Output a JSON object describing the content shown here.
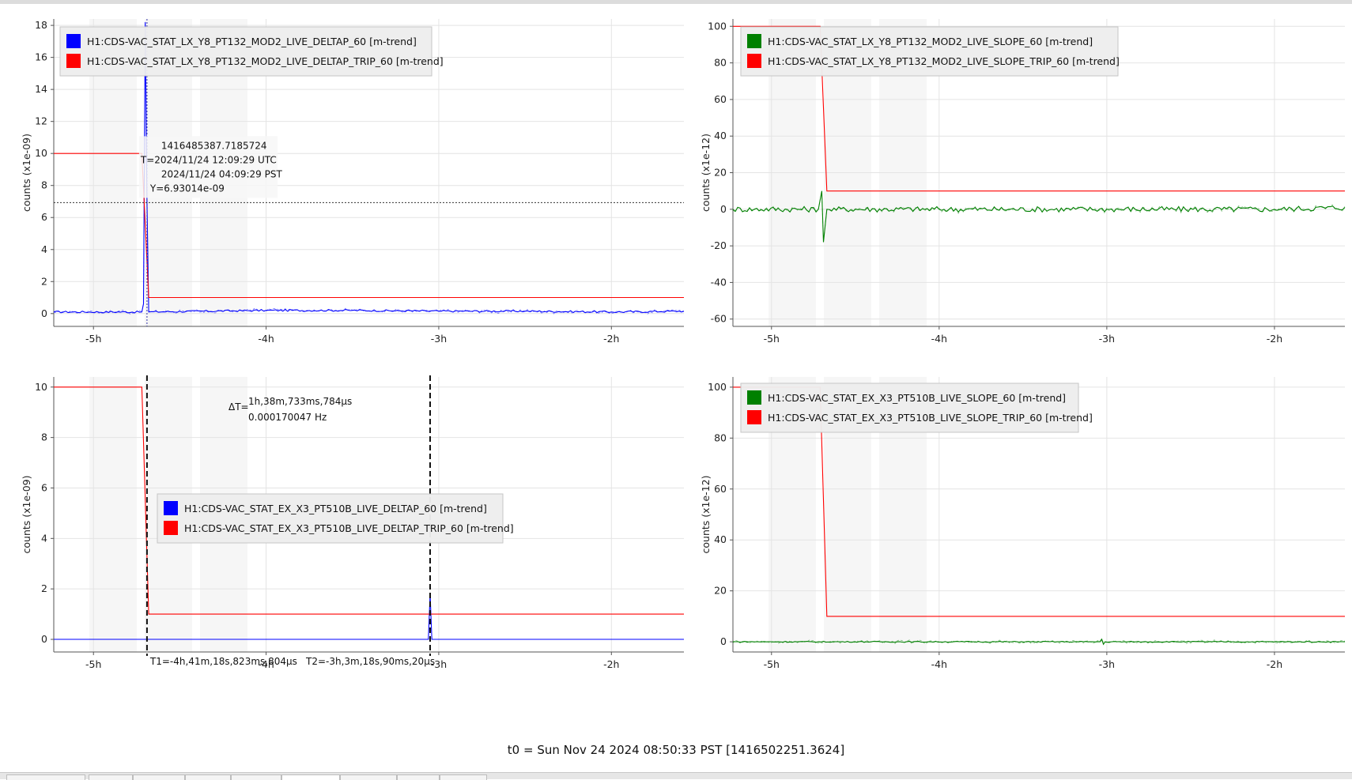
{
  "footer": {
    "t0_text": "t0 = Sun Nov 24 2024 08:50:33 PST [1416502251.3624]"
  },
  "colors": {
    "blue": "#0000ff",
    "red": "#ff0000",
    "green": "#008000",
    "grid": "#e4e4e4",
    "axis": "#555555"
  },
  "chart_data": [
    {
      "type": "line",
      "panel": "top-left",
      "ylabel": "counts (x1e-09)",
      "xlim": [
        -5.23,
        -1.58
      ],
      "ylim": [
        -0.8,
        18.4
      ],
      "xticks": [
        {
          "v": -5,
          "label": "-5h"
        },
        {
          "v": -4,
          "label": "-4h"
        },
        {
          "v": -3,
          "label": "-3h"
        },
        {
          "v": -2,
          "label": "-2h"
        }
      ],
      "yticks": [
        {
          "v": 0,
          "label": "0"
        },
        {
          "v": 2,
          "label": "2"
        },
        {
          "v": 4,
          "label": "4"
        },
        {
          "v": 6,
          "label": "6"
        },
        {
          "v": 8,
          "label": "8"
        },
        {
          "v": 10,
          "label": "10"
        },
        {
          "v": 12,
          "label": "12"
        },
        {
          "v": 14,
          "label": "14"
        },
        {
          "v": 16,
          "label": "16"
        },
        {
          "v": 18,
          "label": "18"
        }
      ],
      "legend_position": "top-left",
      "series": [
        {
          "name": "H1:CDS-VAC_STAT_LX_Y8_PT132_MOD2_LIVE_DELTAP_60 [m-trend]",
          "color": "#0000ff",
          "points": [
            [
              -5.23,
              0.1
            ],
            [
              -4.72,
              0.1
            ],
            [
              -4.71,
              0.6
            ],
            [
              -4.7,
              18.2
            ],
            [
              -4.69,
              7.0
            ],
            [
              -4.68,
              0.1
            ],
            [
              -4.0,
              0.2
            ],
            [
              -3.5,
              0.2
            ],
            [
              -3.0,
              0.15
            ],
            [
              -2.5,
              0.15
            ],
            [
              -2.0,
              0.1
            ],
            [
              -1.58,
              0.15
            ]
          ],
          "noise": 0.06
        },
        {
          "name": "H1:CDS-VAC_STAT_LX_Y8_PT132_MOD2_LIVE_DELTAP_TRIP_60 [m-trend]",
          "color": "#ff0000",
          "points": [
            [
              -5.23,
              10
            ],
            [
              -4.72,
              10
            ],
            [
              -4.68,
              1
            ],
            [
              -1.58,
              1
            ]
          ],
          "noise": 0
        }
      ],
      "cursor": {
        "x": -4.69,
        "y": 6.93,
        "lines": [
          "1416485387.7185724",
          "T=2024/11/24 12:09:29 UTC",
          "2024/11/24 04:09:29 PST",
          "Y=6.93014e-09"
        ]
      }
    },
    {
      "type": "line",
      "panel": "top-right",
      "ylabel": "counts (x1e-12)",
      "xlim": [
        -5.23,
        -1.58
      ],
      "ylim": [
        -64,
        104
      ],
      "xticks": [
        {
          "v": -5,
          "label": "-5h"
        },
        {
          "v": -4,
          "label": "-4h"
        },
        {
          "v": -3,
          "label": "-3h"
        },
        {
          "v": -2,
          "label": "-2h"
        }
      ],
      "yticks": [
        {
          "v": -60,
          "label": "-60"
        },
        {
          "v": -40,
          "label": "-40"
        },
        {
          "v": -20,
          "label": "-20"
        },
        {
          "v": 0,
          "label": "0"
        },
        {
          "v": 20,
          "label": "20"
        },
        {
          "v": 40,
          "label": "40"
        },
        {
          "v": 60,
          "label": "60"
        },
        {
          "v": 80,
          "label": "80"
        },
        {
          "v": 100,
          "label": "100"
        }
      ],
      "legend_position": "top-left",
      "series": [
        {
          "name": "H1:CDS-VAC_STAT_LX_Y8_PT132_MOD2_LIVE_SLOPE_60 [m-trend]",
          "color": "#008000",
          "points": [
            [
              -5.23,
              0
            ],
            [
              -4.72,
              0
            ],
            [
              -4.7,
              10
            ],
            [
              -4.69,
              -18
            ],
            [
              -4.67,
              0
            ],
            [
              -4.0,
              0
            ],
            [
              -3.0,
              0
            ],
            [
              -2.0,
              0
            ],
            [
              -1.58,
              1
            ]
          ],
          "noise": 1.5
        },
        {
          "name": "H1:CDS-VAC_STAT_LX_Y8_PT132_MOD2_LIVE_SLOPE_TRIP_60 [m-trend]",
          "color": "#ff0000",
          "points": [
            [
              -5.23,
              100
            ],
            [
              -4.71,
              100
            ],
            [
              -4.67,
              10
            ],
            [
              -1.58,
              10
            ]
          ],
          "noise": 0
        }
      ]
    },
    {
      "type": "line",
      "panel": "bottom-left",
      "ylabel": "counts (x1e-09)",
      "xlim": [
        -5.23,
        -1.58
      ],
      "ylim": [
        -0.5,
        10.4
      ],
      "xticks": [
        {
          "v": -5,
          "label": "-5h"
        },
        {
          "v": -4,
          "label": "-4h"
        },
        {
          "v": -3,
          "label": "-3h"
        },
        {
          "v": -2,
          "label": "-2h"
        }
      ],
      "yticks": [
        {
          "v": 0,
          "label": "0"
        },
        {
          "v": 2,
          "label": "2"
        },
        {
          "v": 4,
          "label": "4"
        },
        {
          "v": 6,
          "label": "6"
        },
        {
          "v": 8,
          "label": "8"
        },
        {
          "v": 10,
          "label": "10"
        }
      ],
      "legend_position": "center-left",
      "series": [
        {
          "name": "H1:CDS-VAC_STAT_EX_X3_PT510B_LIVE_DELTAP_60 [m-trend]",
          "color": "#0000ff",
          "points": [
            [
              -5.23,
              0
            ],
            [
              -3.06,
              0
            ],
            [
              -3.05,
              1.8
            ],
            [
              -3.04,
              0
            ],
            [
              -1.58,
              0
            ]
          ],
          "noise": 0
        },
        {
          "name": "H1:CDS-VAC_STAT_EX_X3_PT510B_LIVE_DELTAP_TRIP_60 [m-trend]",
          "color": "#ff0000",
          "points": [
            [
              -5.23,
              10
            ],
            [
              -4.72,
              10
            ],
            [
              -4.68,
              1
            ],
            [
              -1.58,
              1
            ]
          ],
          "noise": 0
        }
      ],
      "markers": {
        "t1": -4.69,
        "t2": -3.05,
        "t1_label": "T1=-4h,41m,18s,823ms,804μs",
        "t2_label": "T2=-3h,3m,18s,90ms,20μs",
        "delta_prefix": "ΔT=",
        "delta_time": "1h,38m,733ms,784μs",
        "delta_freq": "0.000170047 Hz"
      }
    },
    {
      "type": "line",
      "panel": "bottom-right",
      "ylabel": "counts (x1e-12)",
      "xlim": [
        -5.23,
        -1.58
      ],
      "ylim": [
        -4,
        104
      ],
      "xticks": [
        {
          "v": -5,
          "label": "-5h"
        },
        {
          "v": -4,
          "label": "-4h"
        },
        {
          "v": -3,
          "label": "-3h"
        },
        {
          "v": -2,
          "label": "-2h"
        }
      ],
      "yticks": [
        {
          "v": 0,
          "label": "0"
        },
        {
          "v": 20,
          "label": "20"
        },
        {
          "v": 40,
          "label": "40"
        },
        {
          "v": 60,
          "label": "60"
        },
        {
          "v": 80,
          "label": "80"
        },
        {
          "v": 100,
          "label": "100"
        }
      ],
      "legend_position": "top-left",
      "series": [
        {
          "name": "H1:CDS-VAC_STAT_EX_X3_PT510B_LIVE_SLOPE_60 [m-trend]",
          "color": "#008000",
          "points": [
            [
              -5.23,
              0
            ],
            [
              -3.04,
              0
            ],
            [
              -3.03,
              1
            ],
            [
              -3.02,
              -1
            ],
            [
              -3.01,
              0
            ],
            [
              -1.58,
              0
            ]
          ],
          "noise": 0.2
        },
        {
          "name": "H1:CDS-VAC_STAT_EX_X3_PT510B_LIVE_SLOPE_TRIP_60 [m-trend]",
          "color": "#ff0000",
          "points": [
            [
              -5.23,
              100
            ],
            [
              -4.71,
              100
            ],
            [
              -4.67,
              10
            ],
            [
              -1.58,
              10
            ]
          ],
          "noise": 0
        }
      ]
    }
  ]
}
